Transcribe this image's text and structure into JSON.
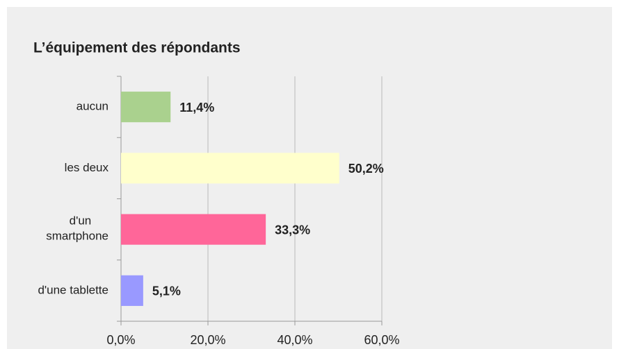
{
  "chart_data": {
    "type": "hbar",
    "title": "L’équipement des répondants",
    "categories": [
      "aucun",
      "les deux",
      "d'un smartphone",
      "d'une tablette"
    ],
    "values": [
      11.4,
      50.2,
      33.3,
      5.1
    ],
    "value_labels": [
      "11,4%",
      "50,2%",
      "33,3%",
      "5,1%"
    ],
    "colors": [
      "#aad18e",
      "#ffffcc",
      "#ff6699",
      "#9999ff"
    ],
    "xlim": [
      0,
      60
    ],
    "xticks": [
      {
        "value": 0,
        "label": "0,0%"
      },
      {
        "value": 20,
        "label": "20,0%"
      },
      {
        "value": 40,
        "label": "40,0%"
      },
      {
        "value": 60,
        "label": "60,0%"
      }
    ],
    "grid": true
  }
}
